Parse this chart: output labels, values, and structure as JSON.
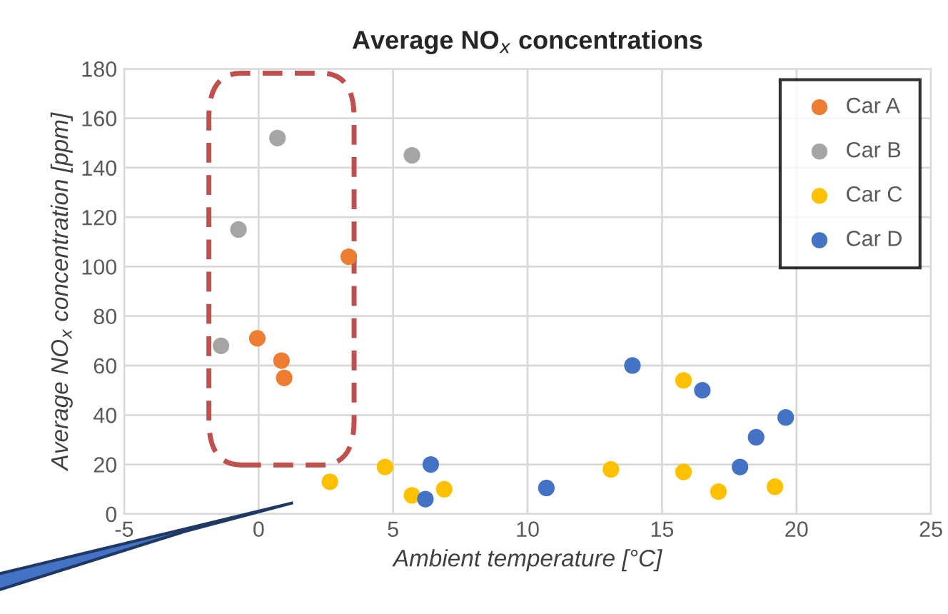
{
  "chart_data": {
    "type": "scatter",
    "title": "Average NO$_{x}$ concentrations",
    "xlabel": "Ambient temperature [°C]",
    "ylabel": "Average NO$_{x}$ concentration [ppm]",
    "xlim": [
      -5,
      25
    ],
    "xticks": [
      -5,
      0,
      5,
      10,
      15,
      20,
      25
    ],
    "ylim": [
      0,
      180
    ],
    "yticks": [
      0,
      20,
      40,
      60,
      80,
      100,
      120,
      140,
      160,
      180
    ],
    "grid": true,
    "legend": "top right",
    "marker": "circle",
    "series": [
      {
        "name": "Car A",
        "color": "#ed7d31",
        "x": [
          -0.05,
          0.85,
          0.95,
          3.35
        ],
        "values": [
          71,
          62,
          55,
          104
        ]
      },
      {
        "name": "Car B",
        "color": "#a5a5a5",
        "x": [
          -1.4,
          -0.75,
          0.7,
          5.7
        ],
        "values": [
          68,
          115,
          152,
          145
        ]
      },
      {
        "name": "Car C",
        "color": "#ffc000",
        "x": [
          2.65,
          4.7,
          5.7,
          6.9,
          13.1,
          15.8,
          15.8,
          17.1,
          19.2
        ],
        "values": [
          13,
          19,
          7.5,
          10,
          18,
          54,
          17,
          9,
          11
        ]
      },
      {
        "name": "Car D",
        "color": "#4472c4",
        "x": [
          6.4,
          6.2,
          10.7,
          13.9,
          16.5,
          18.5,
          17.9,
          19.6
        ],
        "values": [
          20,
          6,
          10.5,
          60,
          50,
          31,
          19,
          39
        ]
      }
    ]
  }
}
